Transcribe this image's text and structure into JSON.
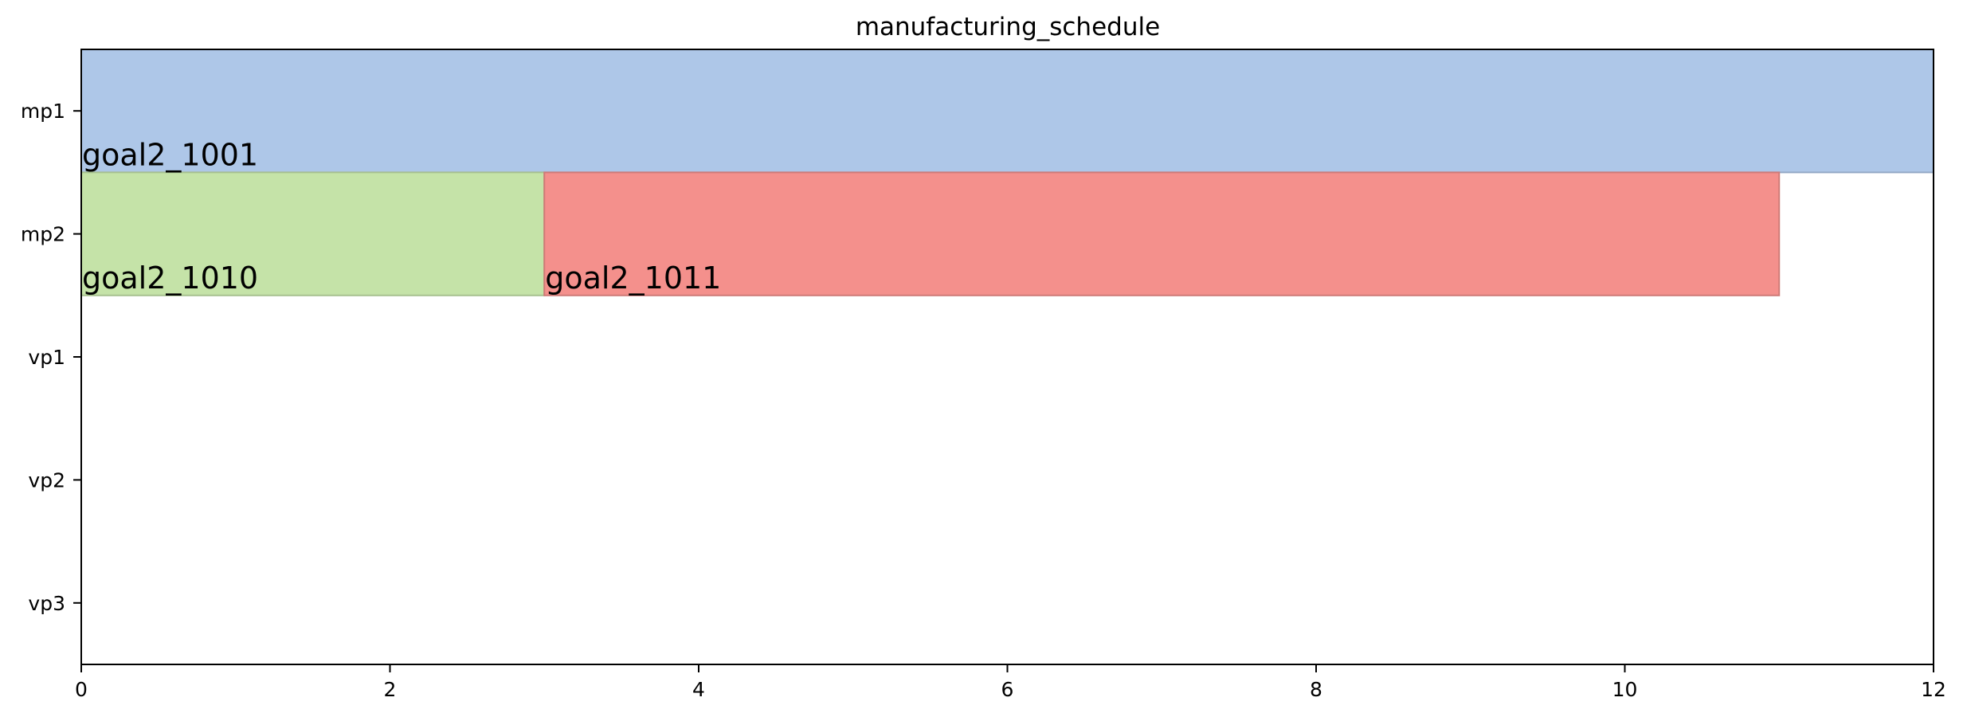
{
  "chart_data": {
    "type": "gantt",
    "title": "manufacturing_schedule",
    "xlabel": "",
    "ylabel": "",
    "xlim": [
      0,
      12
    ],
    "x_ticks": [
      0,
      2,
      4,
      6,
      8,
      10,
      12
    ],
    "x_tick_labels": [
      "0",
      "2",
      "4",
      "6",
      "8",
      "10",
      "12"
    ],
    "grid": false,
    "rows": [
      "mp1",
      "mp2",
      "vp1",
      "vp2",
      "vp3"
    ],
    "tasks": [
      {
        "label": "goal2_1001",
        "row": "mp1",
        "start": 0,
        "end": 12,
        "color": "#aec7e8"
      },
      {
        "label": "goal2_1010",
        "row": "mp2",
        "start": 0,
        "end": 3,
        "color": "#c5e3a8"
      },
      {
        "label": "goal2_1011",
        "row": "mp2",
        "start": 3,
        "end": 11,
        "color": "#f4908c"
      }
    ]
  }
}
